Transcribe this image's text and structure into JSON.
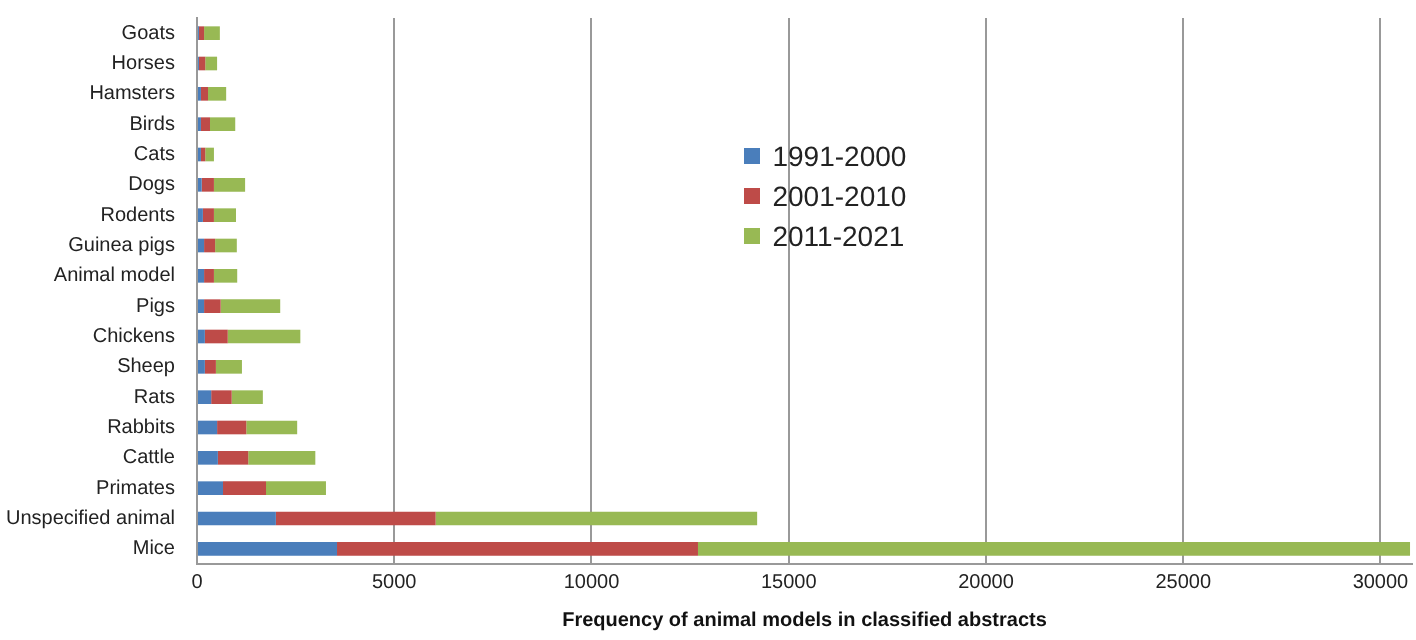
{
  "chart_data": {
    "type": "bar",
    "orientation": "horizontal",
    "stacked": true,
    "xlabel": "Frequency of animal models in classified abstracts",
    "categories": [
      "Goats",
      "Horses",
      "Hamsters",
      "Birds",
      "Cats",
      "Dogs",
      "Rodents",
      "Guinea pigs",
      "Animal model",
      "Pigs",
      "Chickens",
      "Sheep",
      "Rats",
      "Rabbits",
      "Cattle",
      "Primates",
      "Unspecified animal",
      "Mice"
    ],
    "series": [
      {
        "name": "1991-2000",
        "color": "#4a7ebb",
        "values": [
          50,
          50,
          100,
          100,
          100,
          120,
          150,
          180,
          180,
          180,
          200,
          200,
          360,
          510,
          530,
          660,
          2000,
          3550
        ]
      },
      {
        "name": "2001-2010",
        "color": "#be4b48",
        "values": [
          130,
          160,
          180,
          230,
          110,
          310,
          280,
          280,
          250,
          420,
          580,
          280,
          520,
          740,
          770,
          1090,
          4050,
          9150
        ]
      },
      {
        "name": "2011-2021",
        "color": "#98b954",
        "values": [
          400,
          300,
          460,
          640,
          220,
          790,
          560,
          550,
          590,
          1510,
          1840,
          660,
          790,
          1290,
          1700,
          1520,
          8150,
          18050
        ]
      }
    ],
    "xlim": [
      0,
      30800
    ],
    "xticks": [
      0,
      5000,
      10000,
      15000,
      20000,
      25000,
      30000
    ],
    "grid": "x",
    "legend": "top"
  }
}
